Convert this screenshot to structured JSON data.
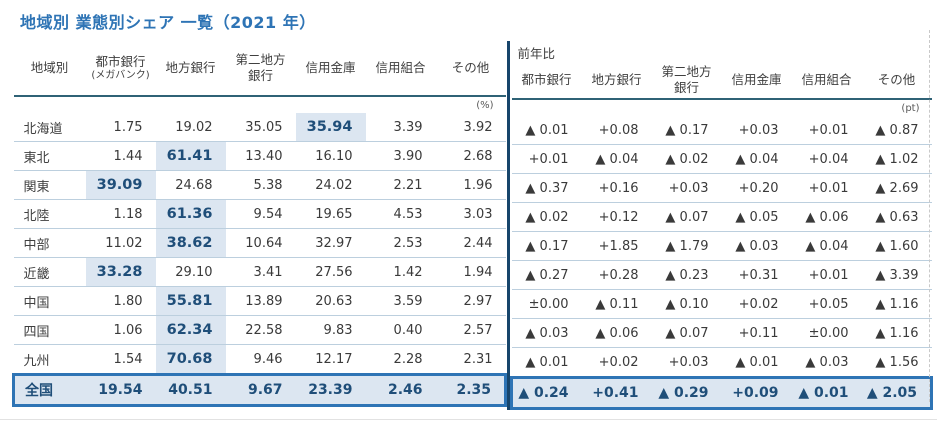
{
  "title": "地域別 業態別シェア 一覧（2021 年）",
  "left_table": {
    "region_header": "地域別",
    "columns": [
      {
        "main": "都市銀行",
        "sub": "(メガバンク)"
      },
      {
        "main": "地方銀行"
      },
      {
        "main": "第二地方\n銀行"
      },
      {
        "main": "信用金庫"
      },
      {
        "main": "信用組合"
      },
      {
        "main": "その他"
      }
    ],
    "unit": "(%)"
  },
  "right_table": {
    "group_label": "前年比",
    "columns": [
      {
        "main": "都市銀行"
      },
      {
        "main": "地方銀行"
      },
      {
        "main": "第二地方\n銀行"
      },
      {
        "main": "信用金庫"
      },
      {
        "main": "信用組合"
      },
      {
        "main": "その他"
      }
    ],
    "unit": "(pt)"
  },
  "rows": [
    {
      "region": "北海道",
      "share": [
        "1.75",
        "19.02",
        "35.05",
        "35.94",
        "3.39",
        "3.92"
      ],
      "highlight": 3,
      "yoy": [
        "▲ 0.01",
        "+0.08",
        "▲ 0.17",
        "+0.03",
        "+0.01",
        "▲ 0.87"
      ]
    },
    {
      "region": "東北",
      "share": [
        "1.44",
        "61.41",
        "13.40",
        "16.10",
        "3.90",
        "2.68"
      ],
      "highlight": 1,
      "yoy": [
        "+0.01",
        "▲ 0.04",
        "▲ 0.02",
        "▲ 0.04",
        "+0.04",
        "▲ 1.02"
      ]
    },
    {
      "region": "関東",
      "share": [
        "39.09",
        "24.68",
        "5.38",
        "24.02",
        "2.21",
        "1.96"
      ],
      "highlight": 0,
      "yoy": [
        "▲ 0.37",
        "+0.16",
        "+0.03",
        "+0.20",
        "+0.01",
        "▲ 2.69"
      ]
    },
    {
      "region": "北陸",
      "share": [
        "1.18",
        "61.36",
        "9.54",
        "19.65",
        "4.53",
        "3.03"
      ],
      "highlight": 1,
      "yoy": [
        "▲ 0.02",
        "+0.12",
        "▲ 0.07",
        "▲ 0.05",
        "▲ 0.06",
        "▲ 0.63"
      ]
    },
    {
      "region": "中部",
      "share": [
        "11.02",
        "38.62",
        "10.64",
        "32.97",
        "2.53",
        "2.44"
      ],
      "highlight": 1,
      "yoy": [
        "▲ 0.17",
        "+1.85",
        "▲ 1.79",
        "▲ 0.03",
        "▲ 0.04",
        "▲ 1.60"
      ]
    },
    {
      "region": "近畿",
      "share": [
        "33.28",
        "29.10",
        "3.41",
        "27.56",
        "1.42",
        "1.94"
      ],
      "highlight": 0,
      "yoy": [
        "▲ 0.27",
        "+0.28",
        "▲ 0.23",
        "+0.31",
        "+0.01",
        "▲ 3.39"
      ]
    },
    {
      "region": "中国",
      "share": [
        "1.80",
        "55.81",
        "13.89",
        "20.63",
        "3.59",
        "2.97"
      ],
      "highlight": 1,
      "yoy": [
        "±0.00",
        "▲ 0.11",
        "▲ 0.10",
        "+0.02",
        "+0.05",
        "▲ 1.16"
      ]
    },
    {
      "region": "四国",
      "share": [
        "1.06",
        "62.34",
        "22.58",
        "9.83",
        "0.40",
        "2.57"
      ],
      "highlight": 1,
      "yoy": [
        "▲ 0.03",
        "▲ 0.06",
        "▲ 0.07",
        "+0.11",
        "±0.00",
        "▲ 1.16"
      ]
    },
    {
      "region": "九州",
      "share": [
        "1.54",
        "70.68",
        "9.46",
        "12.17",
        "2.28",
        "2.31"
      ],
      "highlight": 1,
      "yoy": [
        "▲ 0.01",
        "+0.02",
        "+0.03",
        "▲ 0.01",
        "▲ 0.03",
        "▲ 1.56"
      ]
    }
  ],
  "total_row": {
    "region": "全国",
    "share": [
      "19.54",
      "40.51",
      "9.67",
      "23.39",
      "2.46",
      "2.35"
    ],
    "yoy": [
      "▲ 0.24",
      "+0.41",
      "▲ 0.29",
      "+0.09",
      "▲ 0.01",
      "▲ 2.05"
    ]
  },
  "colors": {
    "title_blue": "#2E74B5",
    "highlight_bg": "#DCE6F1",
    "highlight_text": "#1F4E79",
    "total_border": "#2E74B5",
    "header_rule": "#2F6276",
    "divider": "#17456B",
    "row_separator": "#BCCFDE",
    "body_text": "#3A3A3A"
  }
}
